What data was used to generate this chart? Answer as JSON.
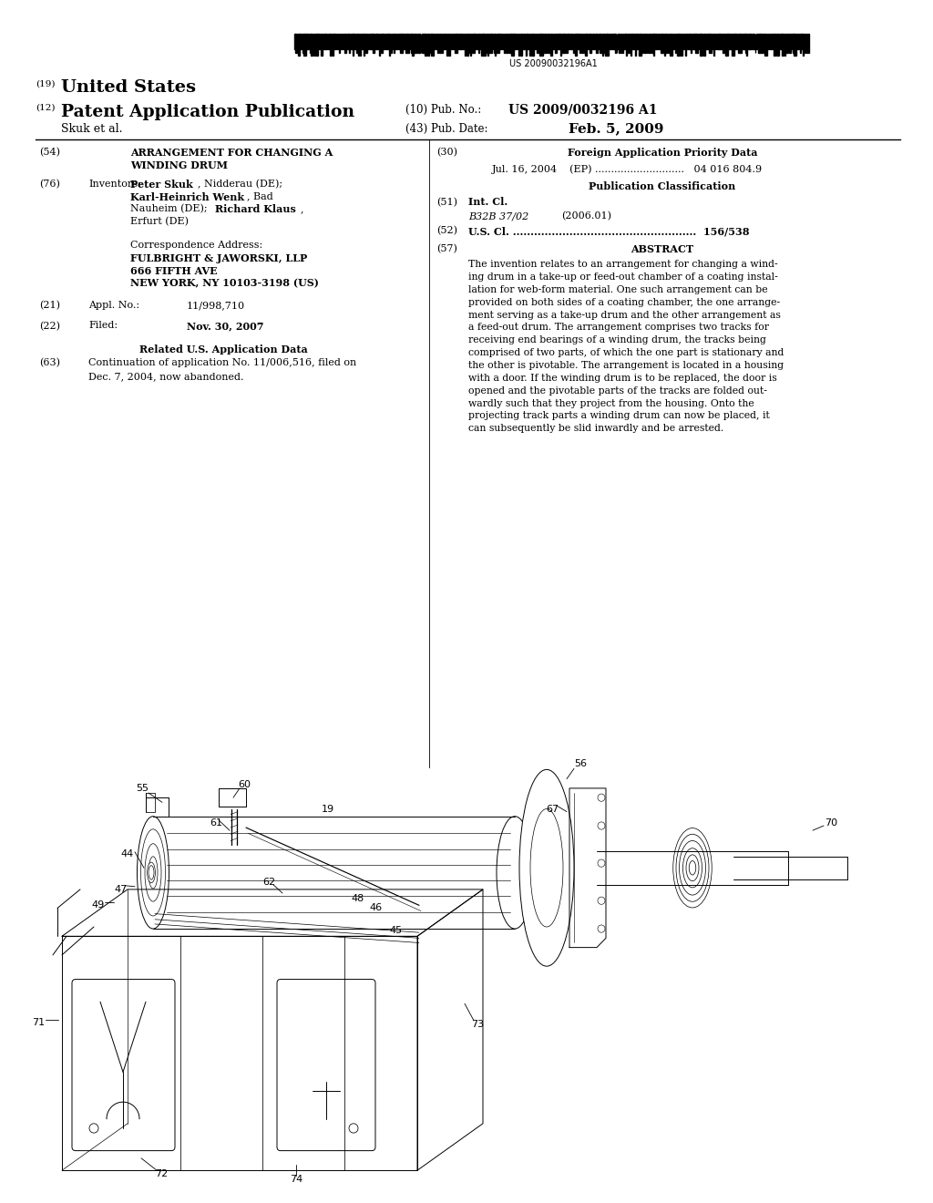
{
  "background_color": "#ffffff",
  "page_width": 10.24,
  "page_height": 13.2,
  "barcode_text": "US 20090032196A1",
  "font_color": "#000000",
  "header": {
    "country_label": "(19)",
    "country_name": "United States",
    "doctype_label": "(12)",
    "doctype_name": "Patent Application Publication",
    "pub_no_label": "(10) Pub. No.:",
    "pub_no_value": "US 2009/0032196 A1",
    "author": "Skuk et al.",
    "pub_date_label": "(43) Pub. Date:",
    "pub_date_value": "Feb. 5, 2009"
  },
  "left_col": {
    "s54_label": "(54)",
    "s54_line1": "ARRANGEMENT FOR CHANGING A",
    "s54_line2": "WINDING DRUM",
    "s76_label": "(76)",
    "s76_mid": "Inventors:",
    "inv1_bold": "Peter Skuk",
    "inv1_rest": ", Nidderau (DE);",
    "inv2_bold": "Karl-Heinrich Wenk",
    "inv2_rest": ", Bad",
    "inv3_pre": "Nauheim (DE); ",
    "inv3_bold": "Richard Klaus",
    "inv3_post": ",",
    "inv4": "Erfurt (DE)",
    "corr_label": "Correspondence Address:",
    "corr1": "FULBRIGHT & JAWORSKI, LLP",
    "corr2": "666 FIFTH AVE",
    "corr3": "NEW YORK, NY 10103-3198 (US)",
    "s21_label": "(21)",
    "s21_mid": "Appl. No.:",
    "s21_val": "11/998,710",
    "s22_label": "(22)",
    "s22_mid": "Filed:",
    "s22_val": "Nov. 30, 2007",
    "related_title": "Related U.S. Application Data",
    "s63_label": "(63)",
    "s63_line1": "Continuation of application No. 11/006,516, filed on",
    "s63_line2": "Dec. 7, 2004, now abandoned."
  },
  "right_col": {
    "s30_label": "(30)",
    "s30_title": "Foreign Application Priority Data",
    "s30_entry": "Jul. 16, 2004    (EP) ............................   04 016 804.9",
    "pub_class_title": "Publication Classification",
    "s51_label": "(51)",
    "s51_title": "Int. Cl.",
    "s51_class": "B32B 37/02",
    "s51_year": "(2006.01)",
    "s52_label": "(52)",
    "s52_text": "U.S. Cl. ....................................................  156/538",
    "s57_label": "(57)",
    "s57_title": "ABSTRACT",
    "abstract": "The invention relates to an arrangement for changing a winding drum in a take-up or feed-out chamber of a coating installation for web-form material. One such arrangement can be provided on both sides of a coating chamber, the one arrangement serving as a take-up drum and the other arrangement as a feed-out drum. The arrangement comprises two tracks for receiving end bearings of a winding drum, the tracks being comprised of two parts, of which the one part is stationary and the other is pivotable. The arrangement is located in a housing with a door. If the winding drum is to be replaced, the door is opened and the pivotable parts of the tracks are folded outwardly such that they project from the housing. Onto the projecting track parts a winding drum can now be placed, it can subsequently be slid inwardly and be arrested."
  }
}
